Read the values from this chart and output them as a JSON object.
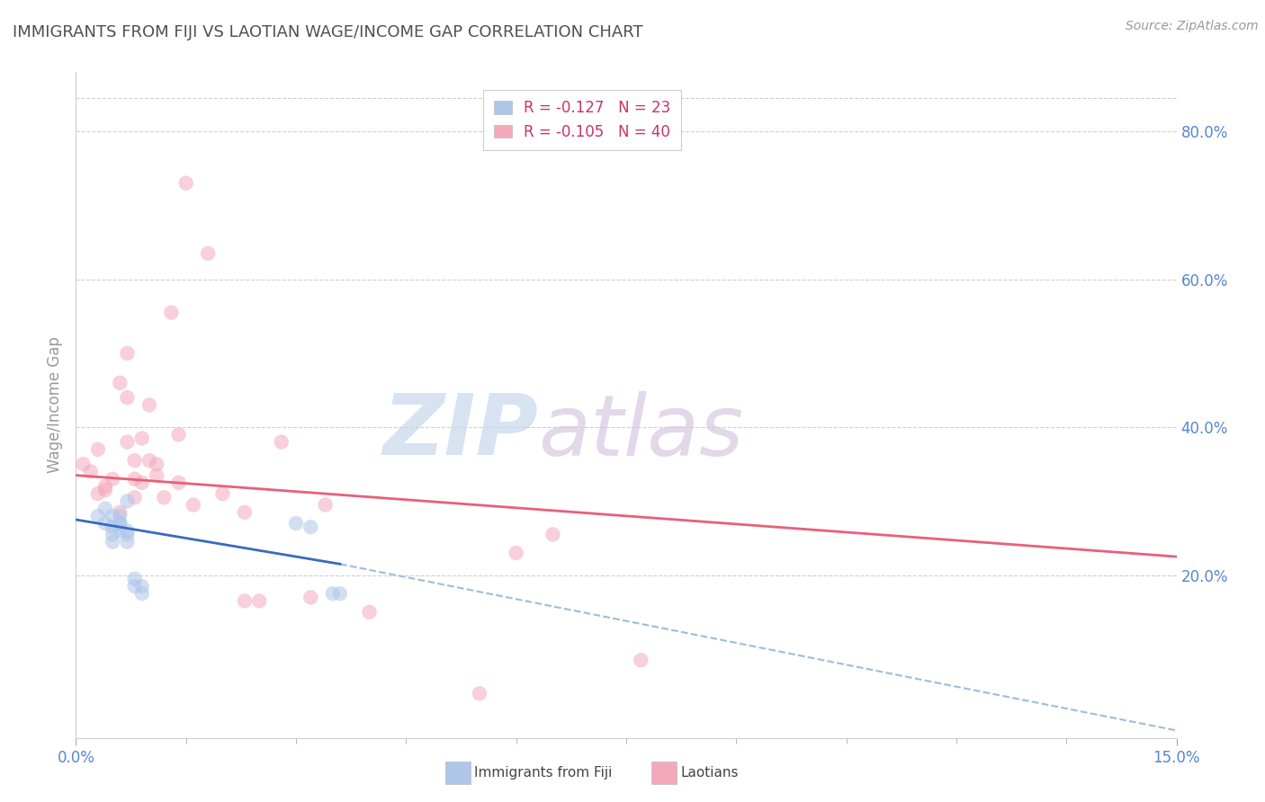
{
  "title": "IMMIGRANTS FROM FIJI VS LAOTIAN WAGE/INCOME GAP CORRELATION CHART",
  "source": "Source: ZipAtlas.com",
  "ylabel": "Wage/Income Gap",
  "right_ytick_vals": [
    0.2,
    0.4,
    0.6,
    0.8
  ],
  "right_ytick_labels": [
    "20.0%",
    "40.0%",
    "60.0%",
    "80.0%"
  ],
  "xmin": 0.0,
  "xmax": 0.15,
  "ymin": -0.02,
  "ymax": 0.88,
  "fiji_x": [
    0.003,
    0.004,
    0.004,
    0.005,
    0.005,
    0.005,
    0.005,
    0.006,
    0.006,
    0.006,
    0.006,
    0.007,
    0.007,
    0.007,
    0.007,
    0.008,
    0.008,
    0.009,
    0.009,
    0.03,
    0.032,
    0.035,
    0.036
  ],
  "fiji_y": [
    0.28,
    0.29,
    0.27,
    0.28,
    0.265,
    0.255,
    0.245,
    0.26,
    0.27,
    0.27,
    0.28,
    0.255,
    0.245,
    0.26,
    0.3,
    0.195,
    0.185,
    0.185,
    0.175,
    0.27,
    0.265,
    0.175,
    0.175
  ],
  "laotian_x": [
    0.001,
    0.002,
    0.003,
    0.003,
    0.004,
    0.004,
    0.005,
    0.006,
    0.006,
    0.007,
    0.007,
    0.007,
    0.008,
    0.008,
    0.008,
    0.009,
    0.009,
    0.01,
    0.01,
    0.011,
    0.011,
    0.012,
    0.013,
    0.014,
    0.014,
    0.015,
    0.016,
    0.018,
    0.02,
    0.023,
    0.023,
    0.025,
    0.028,
    0.032,
    0.034,
    0.04,
    0.06,
    0.065,
    0.077,
    0.055
  ],
  "laotian_y": [
    0.35,
    0.34,
    0.31,
    0.37,
    0.32,
    0.315,
    0.33,
    0.285,
    0.46,
    0.5,
    0.44,
    0.38,
    0.355,
    0.305,
    0.33,
    0.325,
    0.385,
    0.43,
    0.355,
    0.35,
    0.335,
    0.305,
    0.555,
    0.39,
    0.325,
    0.73,
    0.295,
    0.635,
    0.31,
    0.165,
    0.285,
    0.165,
    0.38,
    0.17,
    0.295,
    0.15,
    0.23,
    0.255,
    0.085,
    0.04
  ],
  "fiji_color": "#aec6e8",
  "laotian_color": "#f4a8bc",
  "fiji_line_color": "#3a6abf",
  "laotian_line_color": "#e8607a",
  "dashed_line_color": "#a0bcd8",
  "fiji_R": -0.127,
  "fiji_N": 23,
  "laotian_R": -0.105,
  "laotian_N": 40,
  "marker_size": 140,
  "marker_alpha": 0.55,
  "background_color": "#ffffff",
  "grid_color": "#d0d0d0",
  "title_color": "#505050",
  "axis_label_color": "#5588cc",
  "source_color": "#999999",
  "watermark_zip_color": "#c8d8ec",
  "watermark_atlas_color": "#d8c8e0"
}
